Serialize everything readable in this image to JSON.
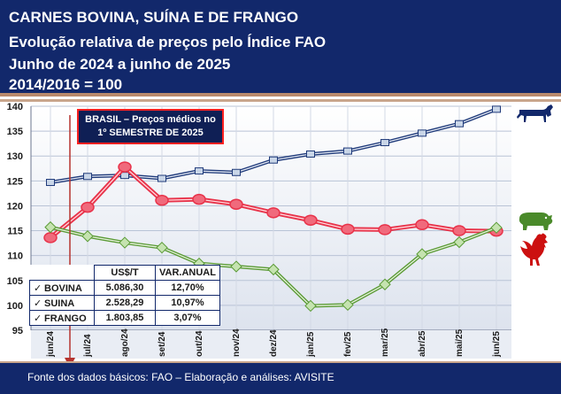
{
  "header": {
    "line1": "CARNES BOVINA, SUÍNA E DE FRANGO",
    "line2": "Evolução relativa de preços pelo Índice FAO",
    "line3": "Junho de 2024 a junho de 2025",
    "line4": "2014/2016 = 100"
  },
  "colors": {
    "header_bg": "#12286b",
    "bovina": "#1f3a7a",
    "suina": "#e8334a",
    "frango": "#5a9a35",
    "arrow": "#b5332e"
  },
  "callout": {
    "line1": "BRASIL – Preços médios no",
    "line2": "1º SEMESTRE DE 2025"
  },
  "table": {
    "headers": [
      "US$/T",
      "VAR.ANUAL"
    ],
    "rows": [
      {
        "check": "✓",
        "name": "BOVINA",
        "price": "5.086,30",
        "var": "12,70%"
      },
      {
        "check": "✓",
        "name": "SUINA",
        "price": "2.528,29",
        "var": "10,97%"
      },
      {
        "check": "✓",
        "name": "FRANGO",
        "price": "1.803,85",
        "var": "3,07%"
      }
    ]
  },
  "icons": [
    "cow-icon",
    "pig-icon",
    "rooster-icon"
  ],
  "footer": "Fonte dos dados básicos: FAO – Elaboração e análises: AVISITE",
  "chart_data": {
    "type": "line",
    "categories": [
      "jun/24",
      "jul/24",
      "ago/24",
      "set/24",
      "out/24",
      "nov/24",
      "dez/24",
      "jan/25",
      "fev/25",
      "mar/25",
      "abr/25",
      "mai/25",
      "jun/25"
    ],
    "yticks": [
      95,
      100,
      105,
      110,
      115,
      120,
      125,
      130,
      135,
      140
    ],
    "ylim": [
      95,
      140
    ],
    "grid": true,
    "series": [
      {
        "key": "bovina",
        "values": [
          124.7,
          125.9,
          126.1,
          125.5,
          127.0,
          126.7,
          129.2,
          130.4,
          131.0,
          132.7,
          134.6,
          136.5,
          139.4
        ]
      },
      {
        "key": "suina",
        "values": [
          113.6,
          119.7,
          127.8,
          121.1,
          121.3,
          120.3,
          118.6,
          117.1,
          115.3,
          115.2,
          116.2,
          115.0,
          114.9
        ]
      },
      {
        "key": "frango",
        "values": [
          115.7,
          113.9,
          112.6,
          111.6,
          108.4,
          107.8,
          107.2,
          99.9,
          100.1,
          104.2,
          110.3,
          112.7,
          115.6
        ]
      }
    ]
  }
}
